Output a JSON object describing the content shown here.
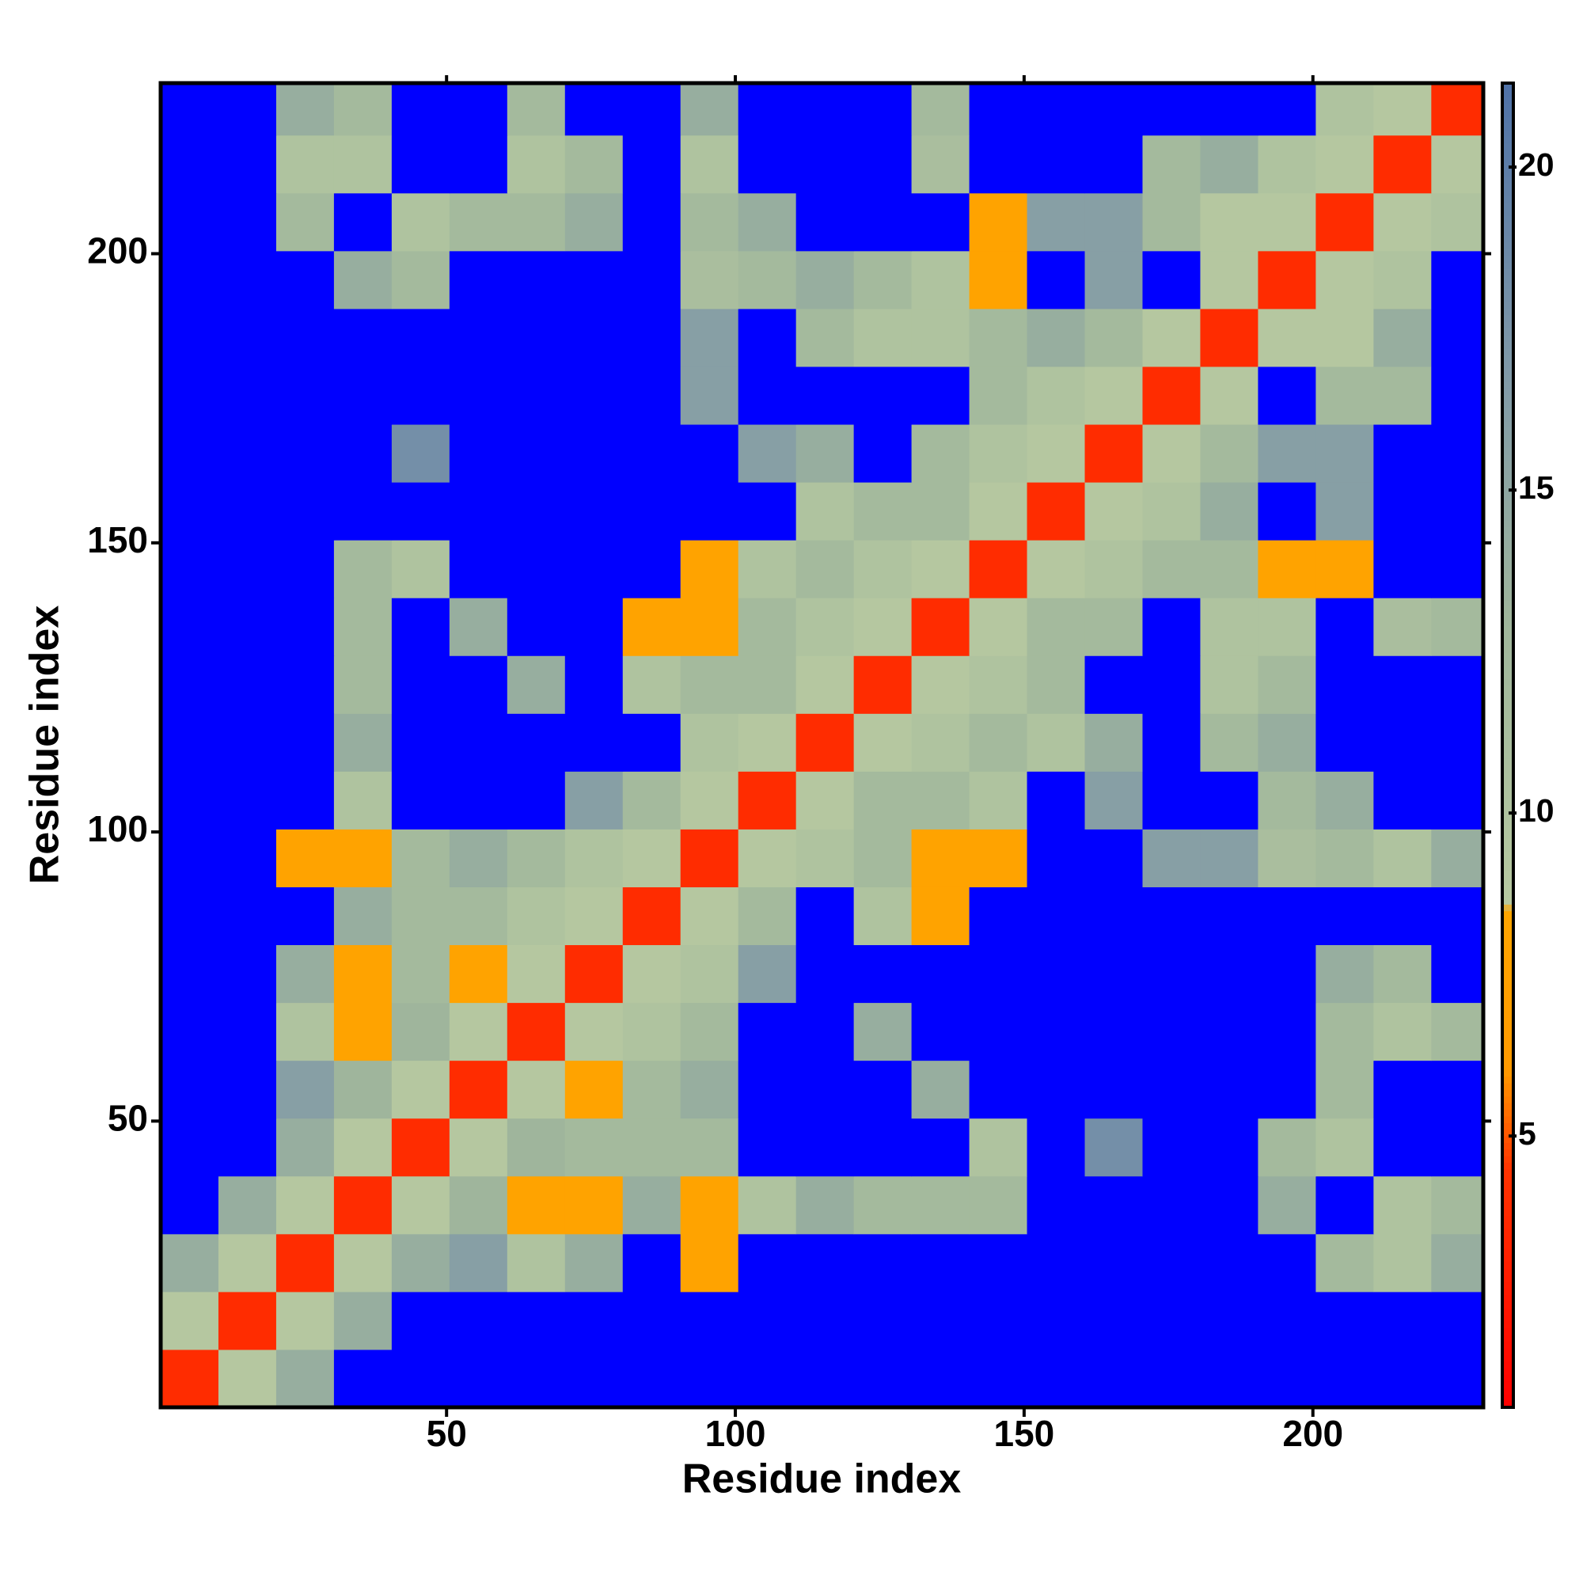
{
  "chart_data": {
    "type": "heatmap",
    "x_label": "Residue index",
    "y_label": "Residue index",
    "x_bins": [
      0.5,
      10.5,
      20.5,
      30.5,
      40.5,
      50.5,
      60.5,
      70.5,
      80.5,
      90.5,
      100.5,
      110.5,
      120.5,
      130.5,
      140.5,
      150.5,
      160.5,
      170.5,
      180.5,
      190.5,
      200.5,
      210.5,
      220.5,
      229.5
    ],
    "y_bins": [
      0.5,
      10.5,
      20.5,
      30.5,
      40.5,
      50.5,
      60.5,
      70.5,
      80.5,
      90.5,
      100.5,
      110.5,
      120.5,
      130.5,
      140.5,
      150.5,
      160.5,
      170.5,
      180.5,
      190.5,
      200.5,
      210.5,
      220.5,
      229.5
    ],
    "xlim": [
      0.5,
      229.5
    ],
    "ylim": [
      0.5,
      229.5
    ],
    "xticks": [
      50,
      100,
      150,
      200
    ],
    "yticks": [
      50,
      100,
      150,
      200
    ],
    "values": [
      [
        4,
        9,
        14,
        25,
        25,
        25,
        25,
        25,
        25,
        25,
        25,
        25,
        25,
        25,
        25,
        25,
        25,
        25,
        25,
        25,
        25,
        25,
        25
      ],
      [
        9,
        4,
        9,
        14,
        25,
        25,
        25,
        25,
        25,
        25,
        25,
        25,
        25,
        25,
        25,
        25,
        25,
        25,
        25,
        25,
        25,
        25,
        25
      ],
      [
        14,
        9,
        4,
        9,
        14,
        16,
        10,
        14,
        25,
        8,
        25,
        25,
        25,
        25,
        25,
        25,
        25,
        25,
        25,
        25,
        12,
        10,
        14
      ],
      [
        25,
        14,
        9,
        4,
        9,
        13,
        8,
        8,
        14,
        8,
        10,
        14,
        12,
        12,
        12,
        25,
        25,
        25,
        25,
        14,
        25,
        10,
        12
      ],
      [
        25,
        25,
        14,
        9,
        4,
        9,
        13,
        12,
        12,
        12,
        25,
        25,
        25,
        25,
        10,
        25,
        18,
        25,
        25,
        12,
        10,
        25,
        25
      ],
      [
        25,
        25,
        16,
        13,
        9,
        4,
        9,
        8,
        12,
        14,
        25,
        25,
        25,
        14,
        25,
        25,
        25,
        25,
        25,
        25,
        12,
        25,
        25
      ],
      [
        25,
        25,
        10,
        8,
        13,
        9,
        4,
        9,
        10,
        12,
        25,
        25,
        14,
        25,
        25,
        25,
        25,
        25,
        25,
        25,
        12,
        10,
        12
      ],
      [
        25,
        25,
        14,
        8,
        12,
        8,
        9,
        4,
        9,
        10,
        16,
        25,
        25,
        25,
        25,
        25,
        25,
        25,
        25,
        25,
        14,
        12,
        25
      ],
      [
        25,
        25,
        25,
        14,
        12,
        12,
        10,
        9,
        4,
        9,
        12,
        25,
        10,
        8,
        25,
        25,
        25,
        25,
        25,
        25,
        25,
        25,
        25
      ],
      [
        25,
        25,
        8,
        8,
        12,
        14,
        12,
        10,
        9,
        4,
        9,
        10,
        12,
        8,
        8,
        25,
        25,
        16,
        16,
        11,
        12,
        10,
        14
      ],
      [
        25,
        25,
        25,
        10,
        25,
        25,
        25,
        16,
        12,
        9,
        4,
        9,
        12,
        12,
        10,
        25,
        16,
        25,
        25,
        12,
        14,
        25,
        25
      ],
      [
        25,
        25,
        25,
        14,
        25,
        25,
        25,
        25,
        25,
        10,
        9,
        4,
        9,
        10,
        12,
        10,
        14,
        25,
        12,
        14,
        25,
        25,
        25
      ],
      [
        25,
        25,
        25,
        12,
        25,
        25,
        14,
        25,
        10,
        12,
        12,
        9,
        4,
        9,
        10,
        12,
        25,
        25,
        10,
        12,
        25,
        25,
        25
      ],
      [
        25,
        25,
        25,
        12,
        25,
        14,
        25,
        25,
        8,
        8,
        12,
        10,
        9,
        4,
        9,
        12,
        12,
        25,
        10,
        10,
        25,
        11,
        12
      ],
      [
        25,
        25,
        25,
        12,
        10,
        25,
        25,
        25,
        25,
        8,
        10,
        12,
        10,
        9,
        4,
        9,
        10,
        12,
        12,
        8,
        8,
        25,
        25
      ],
      [
        25,
        25,
        25,
        25,
        25,
        25,
        25,
        25,
        25,
        25,
        25,
        10,
        12,
        12,
        9,
        4,
        9,
        10,
        14,
        25,
        16,
        25,
        25
      ],
      [
        25,
        25,
        25,
        25,
        18,
        25,
        25,
        25,
        25,
        25,
        16,
        14,
        25,
        12,
        10,
        9,
        4,
        9,
        12,
        16,
        16,
        25,
        25
      ],
      [
        25,
        25,
        25,
        25,
        25,
        25,
        25,
        25,
        25,
        16,
        25,
        25,
        25,
        25,
        12,
        10,
        9,
        4,
        9,
        25,
        12,
        12,
        25
      ],
      [
        25,
        25,
        25,
        25,
        25,
        25,
        25,
        25,
        25,
        16,
        25,
        12,
        10,
        10,
        12,
        14,
        12,
        9,
        4,
        9,
        9,
        14,
        25
      ],
      [
        25,
        25,
        25,
        14,
        12,
        25,
        25,
        25,
        25,
        11,
        12,
        14,
        12,
        10,
        8,
        25,
        16,
        25,
        9,
        4,
        9,
        10,
        25
      ],
      [
        25,
        25,
        12,
        25,
        10,
        12,
        12,
        14,
        25,
        12,
        14,
        25,
        25,
        25,
        8,
        16,
        16,
        12,
        9,
        9,
        4,
        9,
        10
      ],
      [
        25,
        25,
        10,
        10,
        25,
        25,
        10,
        12,
        25,
        10,
        25,
        25,
        25,
        11,
        25,
        25,
        25,
        12,
        14,
        10,
        9,
        4,
        9
      ],
      [
        25,
        25,
        14,
        12,
        25,
        25,
        12,
        25,
        25,
        14,
        25,
        25,
        25,
        12,
        25,
        25,
        25,
        25,
        25,
        25,
        10,
        9,
        4
      ]
    ],
    "clim": [
      0.8,
      21.3
    ],
    "colorbar_ticks": [
      5,
      10,
      15,
      20
    ],
    "colorscale": [
      [
        0.8,
        "#ff0000"
      ],
      [
        4.5,
        "#ff3300"
      ],
      [
        6,
        "#ff9900"
      ],
      [
        8.5,
        "#ffa500"
      ],
      [
        8.6,
        "#b7c9a0"
      ],
      [
        13,
        "#9fb59c"
      ],
      [
        17,
        "#7f98a8"
      ],
      [
        21.3,
        "#4f72a8"
      ]
    ],
    "over_color": "#0000ff"
  }
}
